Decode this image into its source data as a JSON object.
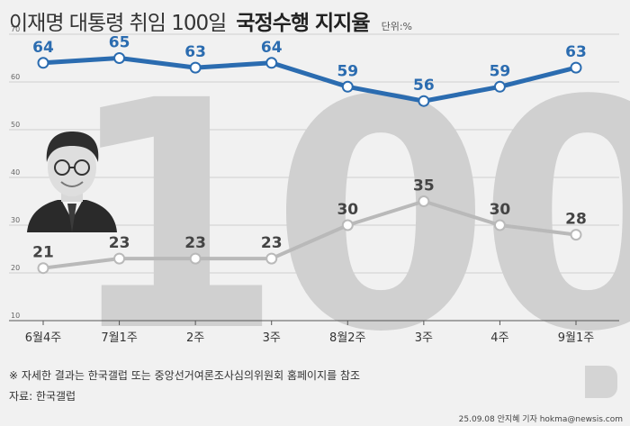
{
  "header": {
    "title_light": "이재명 대통령 취임 100일",
    "title_bold": "국정수행 지지율",
    "unit": "단위:%"
  },
  "footer": {
    "note": "※ 자세한 결과는 한국갤럽 또는 중앙선거여론조사심의위원회 홈페이지를 참조",
    "source": "자료: 한국갤럽",
    "credit": "25.09.08 안지혜 기자 hokma@newsis.com",
    "watermark": "뉴시스"
  },
  "decor": {
    "background_numeral": "100"
  },
  "colors": {
    "background": "#f1f1f1",
    "approve": "#2b6cb0",
    "disapprove": "#b9b9b9",
    "numeral": "#d0d0d0"
  },
  "chart_data": {
    "type": "line",
    "categories": [
      "6월4주",
      "7월1주",
      "2주",
      "3주",
      "8월2주",
      "3주",
      "4주",
      "9월1주"
    ],
    "ylim": [
      10,
      70
    ],
    "yticks": [
      10,
      20,
      30,
      40,
      50,
      60,
      70
    ],
    "grid": true,
    "series": [
      {
        "values": [
          64,
          65,
          63,
          64,
          59,
          56,
          59,
          63
        ],
        "color": "#2b6cb0"
      },
      {
        "values": [
          21,
          23,
          23,
          23,
          30,
          35,
          30,
          28
        ],
        "color": "#b9b9b9"
      }
    ]
  }
}
